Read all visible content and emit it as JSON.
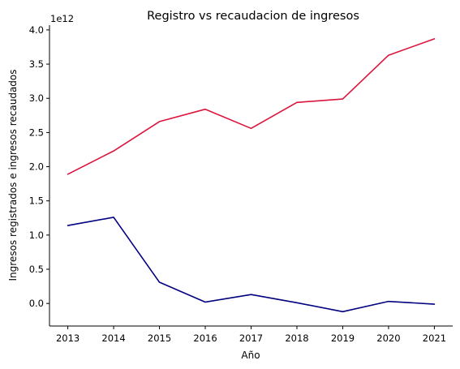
{
  "chart_data": {
    "type": "line",
    "title": "Registro vs recaudacion de ingresos",
    "xlabel": "Año",
    "ylabel": "Ingresos registrados e ingresos recaudados",
    "scale_label": "1e12",
    "x": [
      2013,
      2014,
      2015,
      2016,
      2017,
      2018,
      2019,
      2020,
      2021
    ],
    "x_tick_labels": [
      "2013",
      "2014",
      "2015",
      "2016",
      "2017",
      "2018",
      "2019",
      "2020",
      "2021"
    ],
    "y_ticks": [
      0.0,
      0.5,
      1.0,
      1.5,
      2.0,
      2.5,
      3.0,
      3.5,
      4.0
    ],
    "y_tick_labels": [
      "0.0",
      "0.5",
      "1.0",
      "1.5",
      "2.0",
      "2.5",
      "3.0",
      "3.5",
      "4.0"
    ],
    "ylim": [
      -0.33,
      4.07
    ],
    "xlim": [
      2012.6,
      2021.4
    ],
    "grid": false,
    "series": [
      {
        "color": "#dc143c",
        "values": [
          1.89,
          2.23,
          2.66,
          2.84,
          2.56,
          2.94,
          2.99,
          3.63,
          3.87
        ]
      },
      {
        "color": "#000080",
        "values": [
          1.14,
          1.26,
          0.31,
          0.02,
          0.13,
          0.01,
          -0.12,
          0.03,
          -0.01
        ]
      }
    ]
  }
}
